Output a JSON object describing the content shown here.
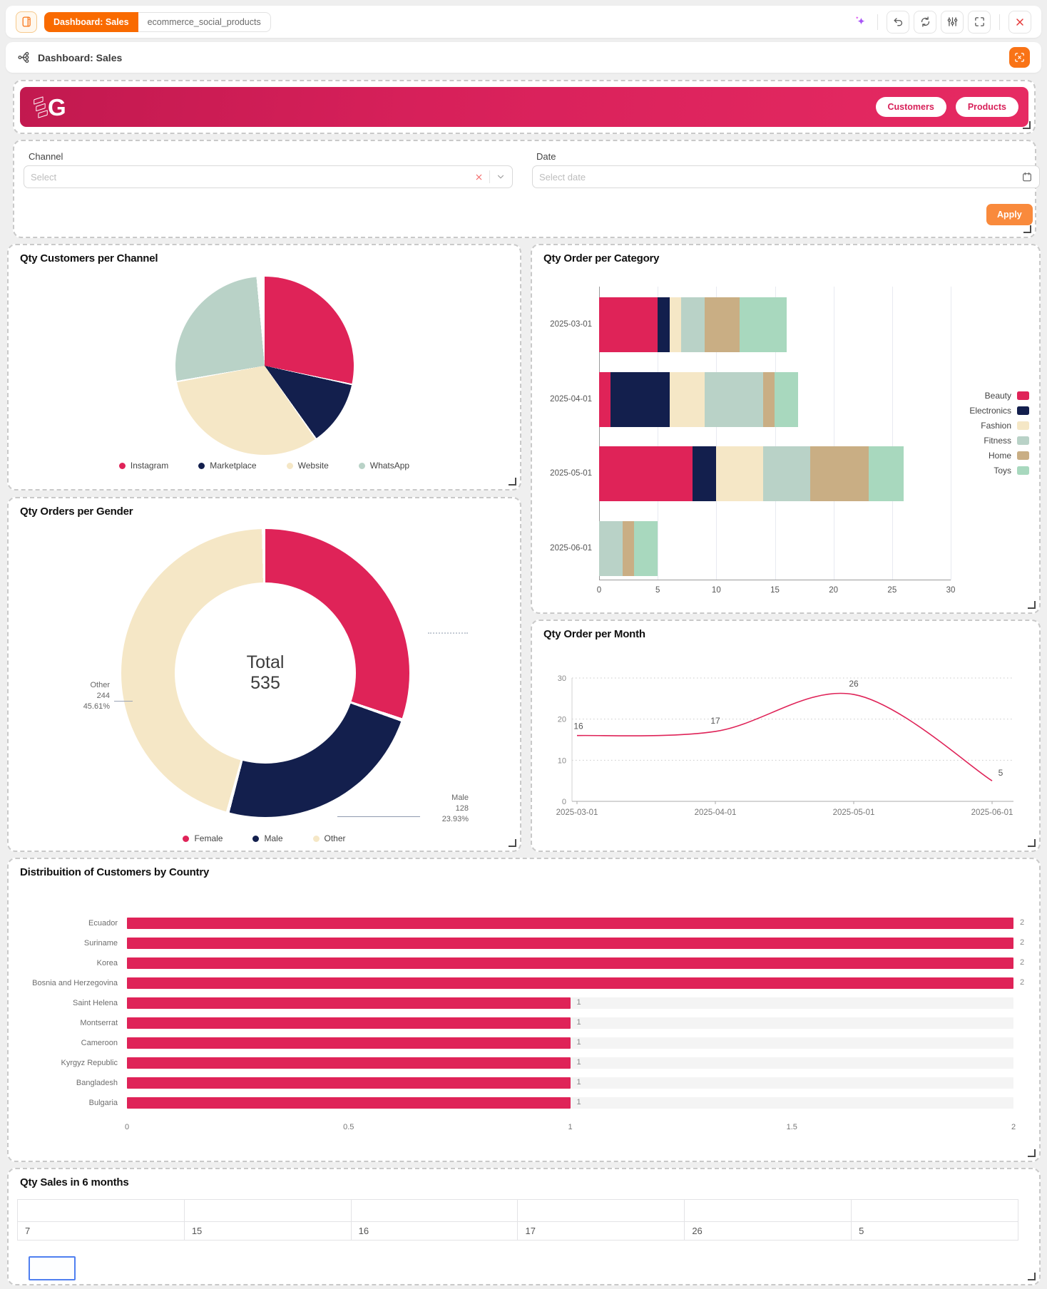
{
  "browser_bar": {
    "primary_tab": "Dashboard: Sales",
    "secondary_tab": "ecommerce_social_products",
    "toolbar_icons": [
      "sparkle",
      "undo",
      "refresh",
      "sliders",
      "maximize",
      "close"
    ]
  },
  "nav_bar": {
    "title": "Dashboard: Sales",
    "left_icon": "flow-schema",
    "right_icon": "scan-clear"
  },
  "banner": {
    "logo_text": "G",
    "nav_buttons": [
      "Customers",
      "Products"
    ]
  },
  "filters": {
    "channel_label": "Channel",
    "channel_placeholder": "Select",
    "date_label": "Date",
    "date_placeholder": "Select date",
    "apply_label": "Apply"
  },
  "colors": {
    "crimson": "#DF2358",
    "navy": "#131F4D",
    "cream": "#F5E7C6",
    "sage": "#B9D2C7",
    "tan": "#C9AE84",
    "mint": "#A8D8BE",
    "orange": "#F96A00",
    "orange_light": "#F98A3C"
  },
  "chart_data": [
    {
      "id": "customers_per_channel",
      "type": "pie",
      "title": "Qty Customers per Channel",
      "legend_position": "bottom",
      "series": [
        {
          "name": "Instagram",
          "color": "#DF2358",
          "share_pct_est": 28.5
        },
        {
          "name": "Marketplace",
          "color": "#131F4D",
          "share_pct_est": 11.9
        },
        {
          "name": "Website",
          "color": "#F5E7C6",
          "share_pct_est": 31.9
        },
        {
          "name": "WhatsApp",
          "color": "#B9D2C7",
          "share_pct_est": 26.5
        }
      ]
    },
    {
      "id": "order_per_category",
      "type": "bar",
      "stacked": true,
      "orientation": "horizontal",
      "title": "Qty Order per Category",
      "categories": [
        "2025-03-01",
        "2025-04-01",
        "2025-05-01",
        "2025-06-01"
      ],
      "series": [
        {
          "name": "Beauty",
          "color": "#DF2358",
          "values": [
            5,
            1,
            8,
            0
          ]
        },
        {
          "name": "Electronics",
          "color": "#131F4D",
          "values": [
            1,
            5,
            2,
            0
          ]
        },
        {
          "name": "Fashion",
          "color": "#F5E7C6",
          "values": [
            1,
            3,
            4,
            0
          ]
        },
        {
          "name": "Fitness",
          "color": "#B9D2C7",
          "values": [
            2,
            5,
            4,
            2
          ]
        },
        {
          "name": "Home",
          "color": "#C9AE84",
          "values": [
            3,
            1,
            5,
            1
          ]
        },
        {
          "name": "Toys",
          "color": "#A8D8BE",
          "values": [
            4,
            2,
            3,
            2
          ]
        }
      ],
      "xlim": [
        0,
        30
      ],
      "xticks": [
        0,
        5,
        10,
        15,
        20,
        25,
        30
      ],
      "legend_position": "right",
      "grid": true
    },
    {
      "id": "orders_per_gender",
      "type": "pie",
      "subtype": "donut",
      "title": "Qty Orders per Gender",
      "center_label": "Total",
      "center_value": "535",
      "series": [
        {
          "name": "Female",
          "color": "#DF2358",
          "value": 163,
          "pct": "30.47%"
        },
        {
          "name": "Male",
          "color": "#131F4D",
          "value": 128,
          "pct": "23.93%"
        },
        {
          "name": "Other",
          "color": "#F5E7C6",
          "value": 244,
          "pct": "45.61%"
        }
      ],
      "callouts": [
        {
          "name": "Other",
          "value": "244",
          "pct": "45.61%"
        },
        {
          "name": "Male",
          "value": "128",
          "pct": "23.93%"
        }
      ],
      "legend_position": "bottom"
    },
    {
      "id": "order_per_month",
      "type": "line",
      "title": "Qty Order per Month",
      "x": [
        "2025-03-01",
        "2025-04-01",
        "2025-05-01",
        "2025-06-01"
      ],
      "values": [
        16,
        17,
        26,
        5
      ],
      "ylim": [
        0,
        30
      ],
      "yticks": [
        0,
        10,
        20,
        30
      ],
      "color": "#DF2358",
      "smooth": true,
      "point_labels": [
        16,
        17,
        26,
        5
      ],
      "grid": "dotted-horizontal"
    },
    {
      "id": "customers_by_country",
      "type": "bar",
      "orientation": "horizontal",
      "title": "Distribuition of Customers by Country",
      "categories": [
        "Ecuador",
        "Suriname",
        "Korea",
        "Bosnia and Herzegovina",
        "Saint Helena",
        "Montserrat",
        "Cameroon",
        "Kyrgyz Republic",
        "Bangladesh",
        "Bulgaria"
      ],
      "values": [
        2,
        2,
        2,
        2,
        1,
        1,
        1,
        1,
        1,
        1
      ],
      "xlim": [
        0,
        2
      ],
      "xticks": [
        0,
        0.5,
        1,
        1.5,
        2
      ],
      "color": "#DF2358",
      "value_labels": true
    },
    {
      "id": "sales_6_months",
      "type": "table",
      "title": "Qty Sales in 6 months",
      "headers": [
        "",
        "",
        "",
        "",
        "",
        ""
      ],
      "rows": [
        [
          "7",
          "15",
          "16",
          "17",
          "26",
          "5"
        ]
      ]
    }
  ]
}
